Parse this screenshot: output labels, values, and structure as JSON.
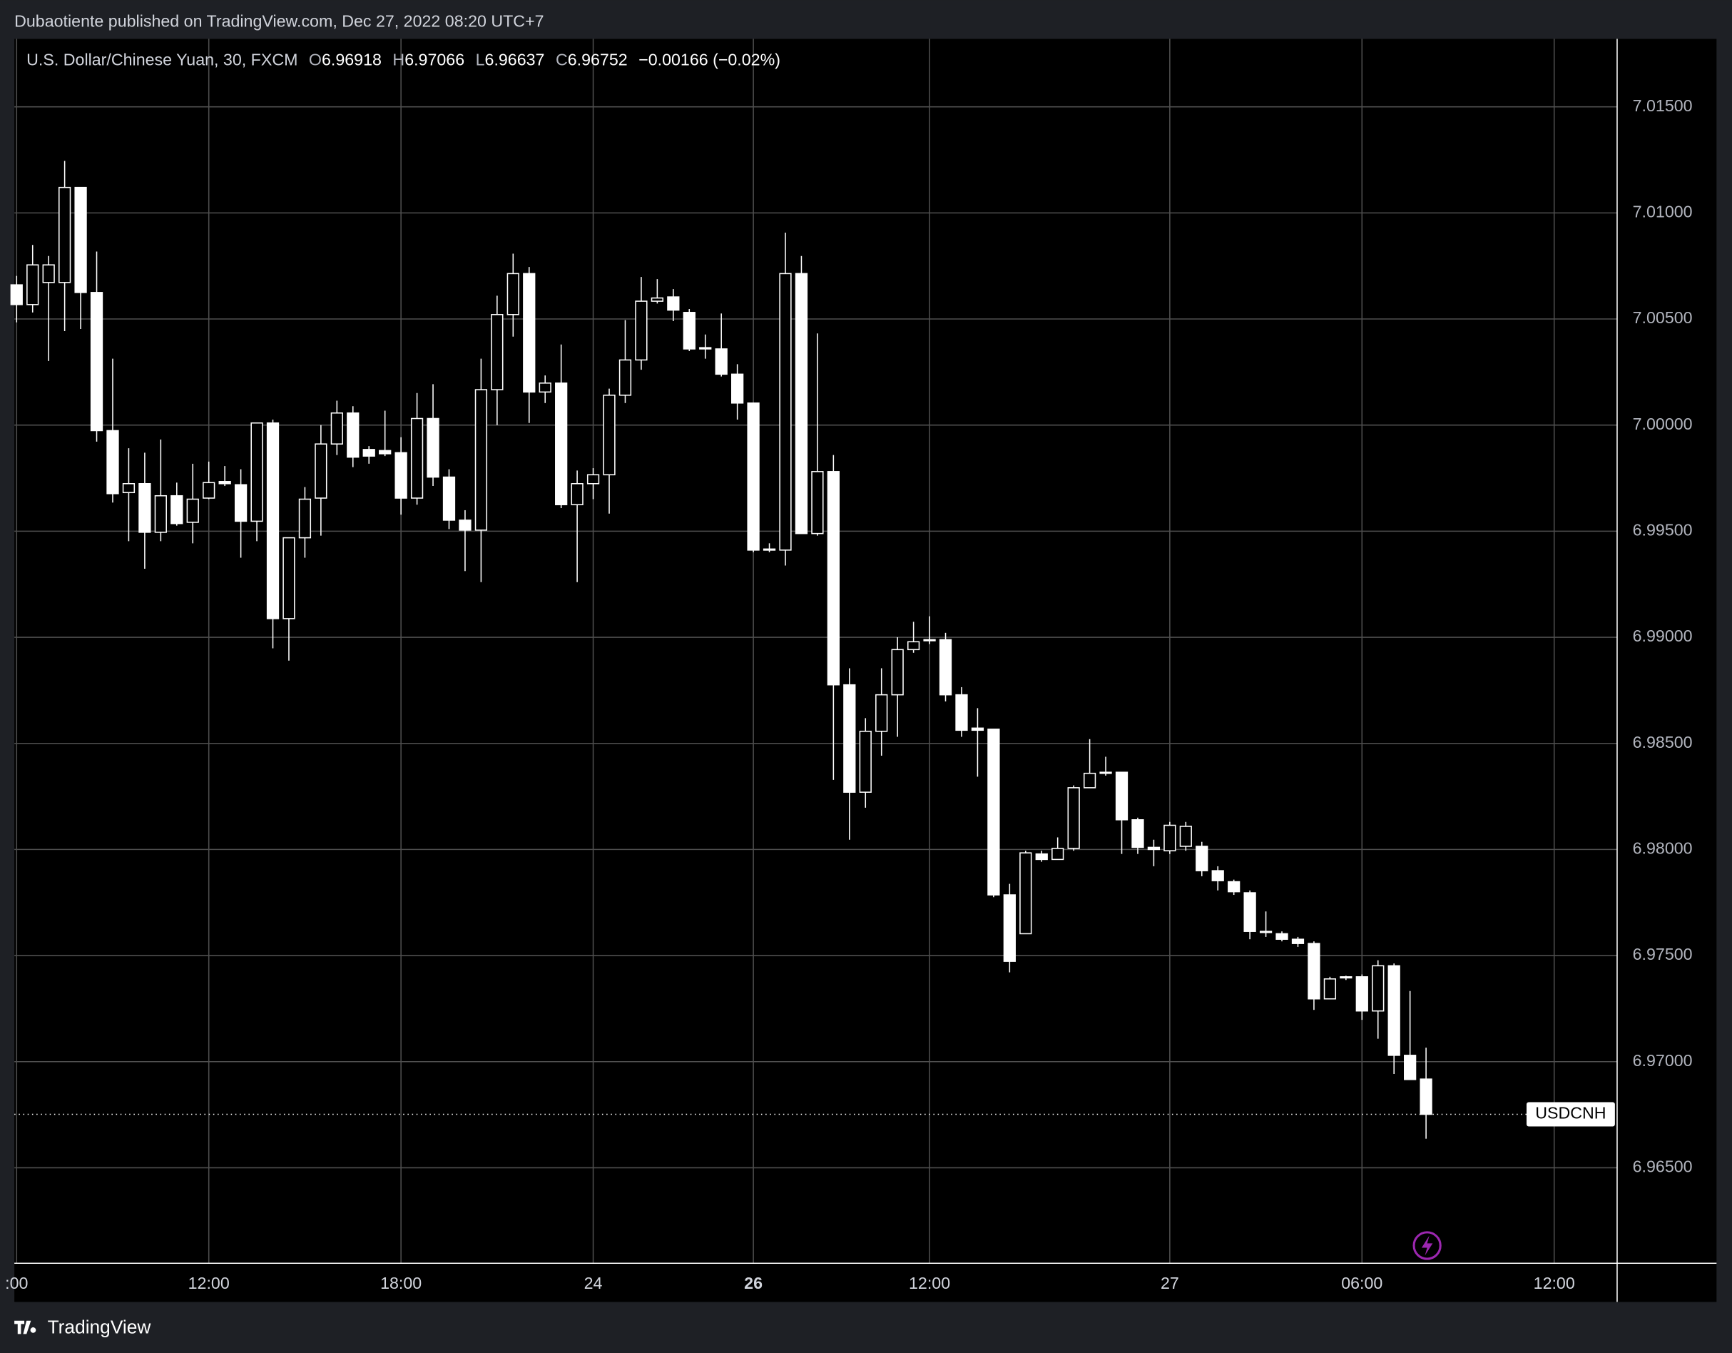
{
  "header": {
    "title": "Dubaotiente published on TradingView.com, Dec 27, 2022 08:20 UTC+7"
  },
  "footer": {
    "brand": "TradingView"
  },
  "chart_data": {
    "type": "candlestick",
    "legend": {
      "symbol": "U.S. Dollar/Chinese Yuan, 30, FXCM",
      "fields": [
        {
          "label": "O",
          "value": "6.96918"
        },
        {
          "label": "H",
          "value": "6.97066"
        },
        {
          "label": "L",
          "value": "6.96637"
        },
        {
          "label": "C",
          "value": "6.96752"
        }
      ],
      "change": "−0.00166 (−0.02%)"
    },
    "price_label": "USDCNH",
    "up_fill": "#000000",
    "down_fill": "#ffffff",
    "line_color": "#ffffff",
    "grid": true,
    "open": [
      7.00661,
      7.00568,
      7.00672,
      7.00672,
      7.0112,
      7.00625,
      6.99974,
      6.99682,
      6.99724,
      6.99495,
      6.99667,
      6.99542,
      6.99656,
      6.99734,
      6.99719,
      6.99547,
      7.0001,
      6.99088,
      6.99469,
      6.99656,
      6.99911,
      7.00057,
      6.99885,
      6.9988,
      6.9987,
      6.99656,
      7.00031,
      6.99755,
      6.99552,
      6.99505,
      7.00167,
      7.00521,
      7.00714,
      7.00156,
      7.00198,
      6.99625,
      6.99724,
      6.99766,
      7.00141,
      7.00307,
      7.00584,
      7.00604,
      7.00531,
      7.00365,
      7.00359,
      7.0024,
      7.00104,
      6.99416,
      6.99411,
      7.00714,
      6.99489,
      6.99781,
      6.98776,
      6.9827,
      6.98557,
      6.98729,
      6.98942,
      6.98984,
      6.98989,
      6.98729,
      6.98572,
      6.98567,
      6.97786,
      6.97603,
      6.97979,
      6.97953,
      6.98005,
      6.98291,
      6.98364,
      6.98364,
      6.9814,
      6.9801,
      6.97994,
      6.98015,
      6.98015,
      6.979,
      6.97848,
      6.97796,
      6.97614,
      6.97603,
      6.97577,
      6.97557,
      6.97296,
      6.97395,
      6.974,
      6.97239,
      6.97452,
      6.9703,
      6.96918
    ],
    "high": [
      7.00703,
      7.00849,
      7.00797,
      7.01245,
      7.0112,
      7.00818,
      7.00313,
      6.99891,
      6.9987,
      6.99932,
      6.99729,
      6.99818,
      6.99828,
      6.99807,
      6.99792,
      7.0001,
      7.00026,
      6.99469,
      6.99708,
      7.0,
      7.00115,
      7.00089,
      6.99901,
      7.00068,
      6.99943,
      7.00151,
      7.00193,
      6.99792,
      6.99599,
      7.00313,
      7.0061,
      7.00808,
      7.00745,
      7.00234,
      7.0038,
      6.99786,
      6.99797,
      7.00172,
      7.00495,
      7.00698,
      7.00688,
      7.00641,
      7.00547,
      7.00427,
      7.00526,
      7.00287,
      7.00104,
      6.99443,
      7.00907,
      7.00797,
      7.00432,
      6.99859,
      6.98854,
      6.98619,
      6.98854,
      6.99,
      6.99073,
      6.99099,
      6.99021,
      6.98765,
      6.98666,
      6.98567,
      6.97838,
      6.97994,
      6.97994,
      6.98057,
      6.98302,
      6.9852,
      6.98437,
      6.98364,
      6.9815,
      6.98046,
      6.9813,
      6.9813,
      6.98036,
      6.97921,
      6.97858,
      6.97807,
      6.97708,
      6.97614,
      6.97588,
      6.97567,
      6.974,
      6.97405,
      6.97411,
      6.97478,
      6.97463,
      6.97333,
      6.97066
    ],
    "low": [
      7.00484,
      7.00531,
      7.00302,
      7.00443,
      7.00453,
      6.99922,
      6.99635,
      6.99453,
      6.99323,
      6.99453,
      6.99526,
      6.99443,
      6.99651,
      6.99713,
      6.99375,
      6.99453,
      6.98948,
      6.9889,
      6.99375,
      6.99479,
      6.99859,
      6.99802,
      6.99818,
      6.99854,
      6.99578,
      6.99625,
      6.99713,
      6.9951,
      6.99312,
      6.9926,
      7.0,
      7.00417,
      7.0001,
      7.00104,
      6.99609,
      6.9926,
      6.99651,
      6.99583,
      7.00104,
      7.00261,
      7.00573,
      7.0049,
      7.00349,
      7.00313,
      7.00229,
      7.00026,
      6.99401,
      6.99401,
      6.99338,
      6.99489,
      6.99479,
      6.98328,
      6.98046,
      6.98197,
      6.98442,
      6.98531,
      6.98927,
      6.98968,
      6.98698,
      6.98531,
      6.98343,
      6.97775,
      6.97421,
      6.97603,
      6.97942,
      6.97953,
      6.97994,
      6.98291,
      6.98348,
      6.97979,
      6.97979,
      6.97921,
      6.97979,
      6.97994,
      6.97874,
      6.97807,
      6.97786,
      6.97577,
      6.97588,
      6.97567,
      6.97541,
      6.97244,
      6.97296,
      6.97385,
      6.97197,
      6.97108,
      6.96942,
      6.96916,
      6.96637
    ],
    "close": [
      7.00568,
      7.00755,
      7.00755,
      7.0112,
      7.00625,
      6.99974,
      6.99677,
      6.99724,
      6.99495,
      6.99667,
      6.99536,
      6.99651,
      6.99729,
      6.99724,
      6.99547,
      7.0001,
      6.99088,
      6.99469,
      6.99651,
      6.99911,
      7.00057,
      6.99849,
      6.99854,
      6.99865,
      6.99656,
      7.00031,
      6.99755,
      6.99552,
      6.99505,
      7.00167,
      7.00521,
      7.00714,
      7.00156,
      7.00198,
      6.99625,
      6.99724,
      6.99766,
      7.00141,
      7.00307,
      7.00584,
      7.00599,
      7.00542,
      7.00359,
      7.00359,
      7.0024,
      7.00104,
      6.99411,
      6.99411,
      7.00714,
      6.99489,
      6.99781,
      6.98776,
      6.9827,
      6.98557,
      6.98729,
      6.98942,
      6.98979,
      6.98989,
      6.98729,
      6.98562,
      6.98562,
      6.97786,
      6.97473,
      6.97984,
      6.97953,
      6.98005,
      6.98291,
      6.98359,
      6.98359,
      6.9814,
      6.9801,
      6.98,
      6.98114,
      6.98109,
      6.979,
      6.97853,
      6.97801,
      6.97614,
      6.97609,
      6.97577,
      6.97557,
      6.97296,
      6.9739,
      6.974,
      6.97239,
      6.97452,
      6.9703,
      6.96916,
      6.96752
    ],
    "xlim": [
      -0.14,
      99.93
    ],
    "xticks": [
      {
        "value": 0,
        "label": ":00"
      },
      {
        "value": 12,
        "label": "12:00"
      },
      {
        "value": 24,
        "label": "18:00"
      },
      {
        "value": 36,
        "label": "24"
      },
      {
        "value": 46,
        "label": "26",
        "bold": true
      },
      {
        "value": 57,
        "label": "12:00"
      },
      {
        "value": 72,
        "label": "27"
      },
      {
        "value": 84,
        "label": "06:00"
      },
      {
        "value": 96,
        "label": "12:00"
      }
    ],
    "ylim": [
      6.9605,
      7.0182
    ],
    "yticks": [
      {
        "value": 6.965,
        "label": "6.96500"
      },
      {
        "value": 6.97,
        "label": "6.97000"
      },
      {
        "value": 6.975,
        "label": "6.97500"
      },
      {
        "value": 6.98,
        "label": "6.98000"
      },
      {
        "value": 6.985,
        "label": "6.98500"
      },
      {
        "value": 6.99,
        "label": "6.99000"
      },
      {
        "value": 6.995,
        "label": "6.99500"
      },
      {
        "value": 7.0,
        "label": "7.00000"
      },
      {
        "value": 7.005,
        "label": "7.00500"
      },
      {
        "value": 7.01,
        "label": "7.01000"
      },
      {
        "value": 7.015,
        "label": "7.01500"
      }
    ]
  }
}
